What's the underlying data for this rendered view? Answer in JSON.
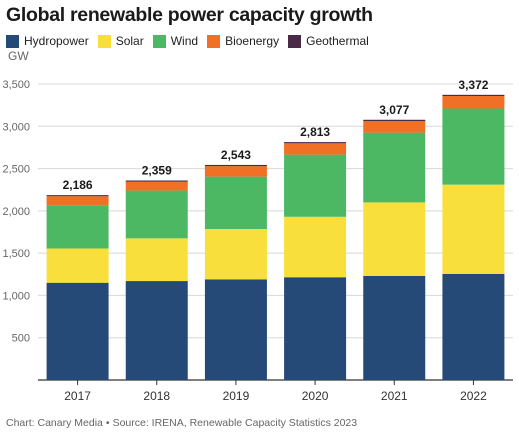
{
  "title": "Global renewable power capacity growth",
  "legend": [
    {
      "label": "Hydropower",
      "color": "#264a78"
    },
    {
      "label": "Solar",
      "color": "#f9df3b"
    },
    {
      "label": "Wind",
      "color": "#4cb863"
    },
    {
      "label": "Bioenergy",
      "color": "#f07025"
    },
    {
      "label": "Geothermal",
      "color": "#4b2a48"
    }
  ],
  "footer": {
    "credit": "Chart: Canary Media",
    "separator": "•",
    "source": "Source: IRENA, Renewable Capacity Statistics 2023"
  },
  "chart_data": {
    "type": "bar",
    "stacked": true,
    "title": "Global renewable power capacity growth",
    "ylabel": "GW",
    "ylim": [
      0,
      3500
    ],
    "yticks": [
      500,
      1000,
      1500,
      2000,
      2500,
      3000,
      3500
    ],
    "ytick_labels": [
      "500",
      "1,000",
      "1,500",
      "2,000",
      "2,500",
      "3,000",
      "3,500"
    ],
    "grid": true,
    "legend_position": "top-left",
    "categories": [
      "2017",
      "2018",
      "2019",
      "2020",
      "2021",
      "2022"
    ],
    "series": [
      {
        "name": "Hydropower",
        "color": "#264a78",
        "values": [
          1150,
          1170,
          1190,
          1215,
          1230,
          1255
        ]
      },
      {
        "name": "Solar",
        "color": "#f9df3b",
        "values": [
          405,
          505,
          595,
          715,
          870,
          1055
        ]
      },
      {
        "name": "Wind",
        "color": "#4cb863",
        "values": [
          510,
          565,
          620,
          735,
          825,
          900
        ]
      },
      {
        "name": "Bioenergy",
        "color": "#f07025",
        "values": [
          108,
          105,
          124,
          134,
          137,
          148
        ]
      },
      {
        "name": "Geothermal",
        "color": "#4b2a48",
        "values": [
          13,
          14,
          14,
          14,
          15,
          14
        ]
      }
    ],
    "totals": [
      2186,
      2359,
      2543,
      2813,
      3077,
      3372
    ],
    "total_labels": [
      "2,186",
      "2,359",
      "2,543",
      "2,813",
      "3,077",
      "3,372"
    ]
  }
}
